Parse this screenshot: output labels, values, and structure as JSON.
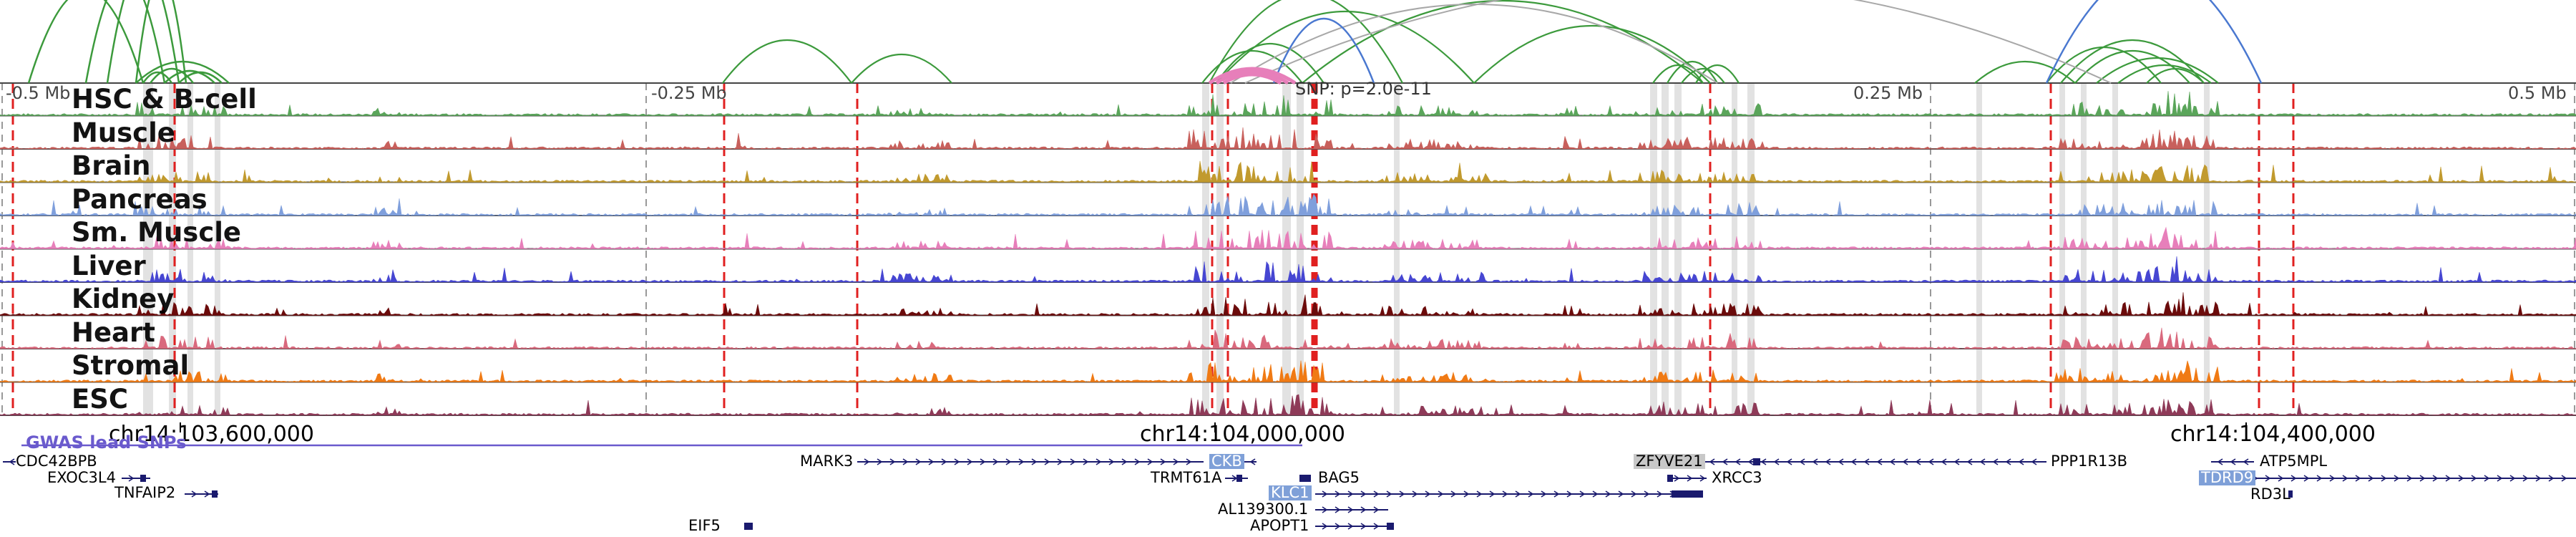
{
  "scale": {
    "left_edge": "-0.5 Mb",
    "left_mid": "-0.25 Mb",
    "right_mid": "0.25 Mb",
    "right_edge": "0.5 Mb"
  },
  "snp_label": "SNP: p=2.0e-11",
  "tracks": [
    {
      "name": "HSC & B-cell",
      "color": "#5aa55a"
    },
    {
      "name": "Muscle",
      "color": "#c8605c"
    },
    {
      "name": "Brain",
      "color": "#c19a2e"
    },
    {
      "name": "Pancreas",
      "color": "#7f9fdc"
    },
    {
      "name": "Sm. Muscle",
      "color": "#e77fba"
    },
    {
      "name": "Liver",
      "color": "#4646d2"
    },
    {
      "name": "Kidney",
      "color": "#6b0b0b"
    },
    {
      "name": "Heart",
      "color": "#d9697d"
    },
    {
      "name": "Stromal",
      "color": "#f07a14"
    },
    {
      "name": "ESC",
      "color": "#8e3a58"
    }
  ],
  "coordinates": [
    "chr14:103,600,000",
    "chr14:104,000,000",
    "chr14:104,400,000"
  ],
  "gwas_label": "GWAS lead SNPs",
  "genes": [
    {
      "name": "CDC42BPB",
      "style": "plain"
    },
    {
      "name": "EXOC3L4",
      "style": "plain"
    },
    {
      "name": "TNFAIP2",
      "style": "plain"
    },
    {
      "name": "EIF5",
      "style": "plain"
    },
    {
      "name": "MARK3",
      "style": "plain"
    },
    {
      "name": "CKB",
      "style": "blue"
    },
    {
      "name": "TRMT61A",
      "style": "plain"
    },
    {
      "name": "BAG5",
      "style": "plain"
    },
    {
      "name": "KLC1",
      "style": "blue"
    },
    {
      "name": "AL139300.1",
      "style": "plain"
    },
    {
      "name": "APOPT1",
      "style": "plain"
    },
    {
      "name": "ZFYVE21",
      "style": "gray"
    },
    {
      "name": "XRCC3",
      "style": "plain"
    },
    {
      "name": "PPP1R13B",
      "style": "plain"
    },
    {
      "name": "ATP5MPL",
      "style": "plain"
    },
    {
      "name": "TDRD9",
      "style": "blue"
    },
    {
      "name": "RD3L",
      "style": "plain"
    }
  ],
  "colors": {
    "red_marker": "#e02020",
    "gray_band": "#d8d8d8",
    "loop_green": "#3c9a3c",
    "loop_blue": "#4a78d0",
    "loop_gray": "#a8a8a8",
    "loop_pink": "#e77fba",
    "gene_navy": "#1a1a6e"
  }
}
